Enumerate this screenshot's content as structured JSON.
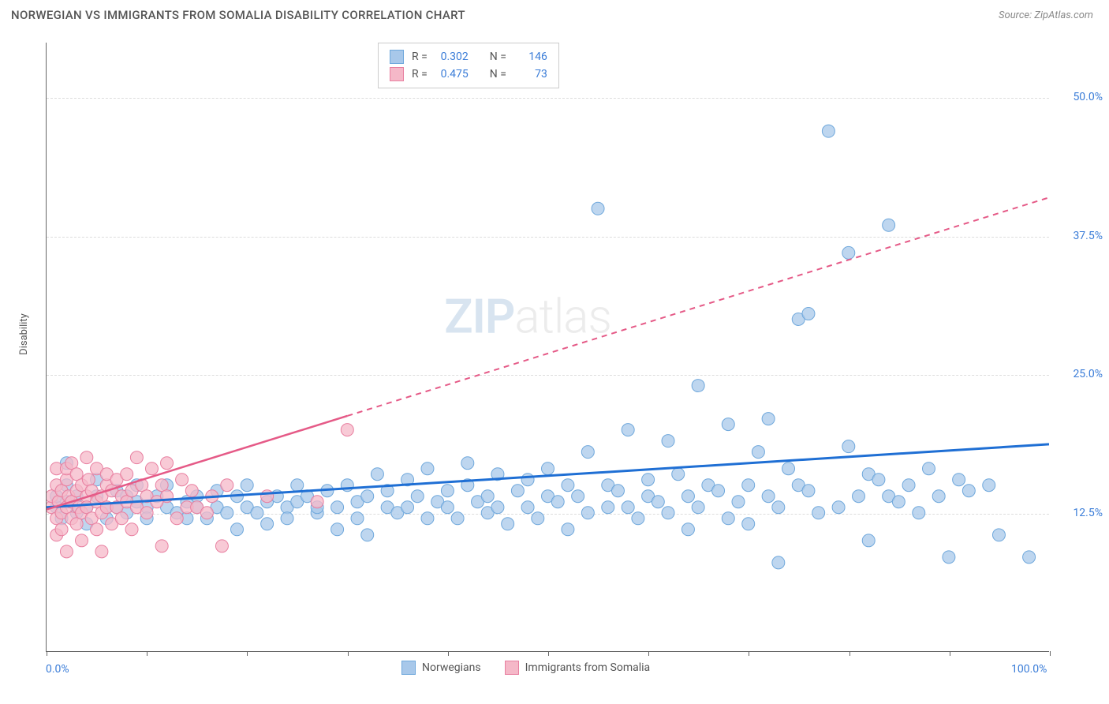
{
  "title": "NORWEGIAN VS IMMIGRANTS FROM SOMALIA DISABILITY CORRELATION CHART",
  "source_label": "Source: ZipAtlas.com",
  "ylabel": "Disability",
  "watermark_a": "ZIP",
  "watermark_b": "atlas",
  "chart": {
    "type": "scatter",
    "xlim": [
      0,
      100
    ],
    "ylim": [
      0,
      55
    ],
    "xtick_positions": [
      0,
      10,
      20,
      30,
      40,
      50,
      60,
      70,
      80,
      90,
      100
    ],
    "xtick_labels_shown": {
      "0": "0.0%",
      "100": "100.0%"
    },
    "ytick_positions": [
      12.5,
      25.0,
      37.5,
      50.0
    ],
    "ytick_labels": [
      "12.5%",
      "25.0%",
      "37.5%",
      "50.0%"
    ],
    "grid_color": "#dddddd",
    "background_color": "#ffffff",
    "series": [
      {
        "name": "Norwegians",
        "marker_color_fill": "#a8c8ea",
        "marker_color_stroke": "#6fa8dc",
        "marker_opacity": 0.75,
        "marker_radius": 8,
        "trend_color": "#1f6fd4",
        "trend_width": 3,
        "trend_dash": "none",
        "trend": {
          "x1": 0,
          "y1": 13.0,
          "x2": 100,
          "y2": 18.7
        },
        "points": [
          [
            1,
            13
          ],
          [
            1,
            14
          ],
          [
            1.5,
            12
          ],
          [
            2,
            13.5
          ],
          [
            2,
            15
          ],
          [
            2,
            17
          ],
          [
            3,
            12.5
          ],
          [
            3,
            14
          ],
          [
            4,
            13
          ],
          [
            4,
            11.5
          ],
          [
            5,
            14
          ],
          [
            5,
            15.5
          ],
          [
            6,
            13
          ],
          [
            6,
            12
          ],
          [
            7,
            14.5
          ],
          [
            7,
            13
          ],
          [
            8,
            12.5
          ],
          [
            8,
            14
          ],
          [
            9,
            13.5
          ],
          [
            9,
            15
          ],
          [
            10,
            13
          ],
          [
            10,
            12
          ],
          [
            11,
            14
          ],
          [
            12,
            13
          ],
          [
            12,
            15
          ],
          [
            13,
            12.5
          ],
          [
            14,
            13.5
          ],
          [
            14,
            12
          ],
          [
            15,
            14
          ],
          [
            15,
            13
          ],
          [
            16,
            12
          ],
          [
            17,
            14.5
          ],
          [
            17,
            13
          ],
          [
            18,
            12.5
          ],
          [
            19,
            14
          ],
          [
            19,
            11
          ],
          [
            20,
            13
          ],
          [
            20,
            15
          ],
          [
            21,
            12.5
          ],
          [
            22,
            13.5
          ],
          [
            22,
            11.5
          ],
          [
            23,
            14
          ],
          [
            24,
            13
          ],
          [
            24,
            12
          ],
          [
            25,
            15
          ],
          [
            25,
            13.5
          ],
          [
            26,
            14
          ],
          [
            27,
            12.5
          ],
          [
            27,
            13
          ],
          [
            28,
            14.5
          ],
          [
            29,
            13
          ],
          [
            29,
            11
          ],
          [
            30,
            15
          ],
          [
            31,
            13.5
          ],
          [
            31,
            12
          ],
          [
            32,
            14
          ],
          [
            32,
            10.5
          ],
          [
            33,
            16
          ],
          [
            34,
            13
          ],
          [
            34,
            14.5
          ],
          [
            35,
            12.5
          ],
          [
            36,
            15.5
          ],
          [
            36,
            13
          ],
          [
            37,
            14
          ],
          [
            38,
            12
          ],
          [
            38,
            16.5
          ],
          [
            39,
            13.5
          ],
          [
            40,
            14.5
          ],
          [
            40,
            13
          ],
          [
            41,
            12
          ],
          [
            42,
            15
          ],
          [
            42,
            17
          ],
          [
            43,
            13.5
          ],
          [
            44,
            14
          ],
          [
            44,
            12.5
          ],
          [
            45,
            16
          ],
          [
            45,
            13
          ],
          [
            46,
            11.5
          ],
          [
            47,
            14.5
          ],
          [
            48,
            13
          ],
          [
            48,
            15.5
          ],
          [
            49,
            12
          ],
          [
            50,
            14
          ],
          [
            50,
            16.5
          ],
          [
            51,
            13.5
          ],
          [
            52,
            15
          ],
          [
            52,
            11
          ],
          [
            53,
            14
          ],
          [
            54,
            12.5
          ],
          [
            54,
            18
          ],
          [
            55,
            40
          ],
          [
            56,
            13
          ],
          [
            56,
            15
          ],
          [
            57,
            14.5
          ],
          [
            58,
            13
          ],
          [
            58,
            20
          ],
          [
            59,
            12
          ],
          [
            60,
            15.5
          ],
          [
            60,
            14
          ],
          [
            61,
            13.5
          ],
          [
            62,
            19
          ],
          [
            62,
            12.5
          ],
          [
            63,
            16
          ],
          [
            64,
            14
          ],
          [
            64,
            11
          ],
          [
            65,
            13
          ],
          [
            65,
            24
          ],
          [
            66,
            15
          ],
          [
            67,
            14.5
          ],
          [
            68,
            12
          ],
          [
            68,
            20.5
          ],
          [
            69,
            13.5
          ],
          [
            70,
            15
          ],
          [
            70,
            11.5
          ],
          [
            71,
            18
          ],
          [
            72,
            14
          ],
          [
            72,
            21
          ],
          [
            73,
            13
          ],
          [
            73,
            8
          ],
          [
            74,
            16.5
          ],
          [
            75,
            15
          ],
          [
            75,
            30
          ],
          [
            76,
            14.5
          ],
          [
            76,
            30.5
          ],
          [
            77,
            12.5
          ],
          [
            78,
            47
          ],
          [
            79,
            13
          ],
          [
            80,
            18.5
          ],
          [
            80,
            36
          ],
          [
            81,
            14
          ],
          [
            82,
            16
          ],
          [
            82,
            10
          ],
          [
            83,
            15.5
          ],
          [
            84,
            14
          ],
          [
            84,
            38.5
          ],
          [
            85,
            13.5
          ],
          [
            86,
            15
          ],
          [
            87,
            12.5
          ],
          [
            88,
            16.5
          ],
          [
            89,
            14
          ],
          [
            90,
            8.5
          ],
          [
            91,
            15.5
          ],
          [
            92,
            14.5
          ],
          [
            94,
            15
          ],
          [
            95,
            10.5
          ],
          [
            98,
            8.5
          ]
        ]
      },
      {
        "name": "Immigrants from Somalia",
        "marker_color_fill": "#f5b8c8",
        "marker_color_stroke": "#e87fa0",
        "marker_opacity": 0.75,
        "marker_radius": 8,
        "trend_color": "#e55a87",
        "trend_width": 2.5,
        "trend_dash": "solid_then_dashed",
        "trend_solid_end_x": 30,
        "trend": {
          "x1": 0,
          "y1": 12.8,
          "x2": 100,
          "y2": 41
        },
        "points": [
          [
            0.5,
            13
          ],
          [
            0.5,
            14
          ],
          [
            1,
            12
          ],
          [
            1,
            15
          ],
          [
            1,
            10.5
          ],
          [
            1,
            16.5
          ],
          [
            1.2,
            13.5
          ],
          [
            1.5,
            12.5
          ],
          [
            1.5,
            14.5
          ],
          [
            1.5,
            11
          ],
          [
            2,
            13
          ],
          [
            2,
            15.5
          ],
          [
            2,
            16.5
          ],
          [
            2,
            9
          ],
          [
            2.2,
            14
          ],
          [
            2.5,
            12
          ],
          [
            2.5,
            13.5
          ],
          [
            2.5,
            17
          ],
          [
            3,
            14.5
          ],
          [
            3,
            11.5
          ],
          [
            3,
            16
          ],
          [
            3.2,
            13
          ],
          [
            3.5,
            15
          ],
          [
            3.5,
            12.5
          ],
          [
            3.5,
            10
          ],
          [
            4,
            14
          ],
          [
            4,
            17.5
          ],
          [
            4,
            13
          ],
          [
            4.2,
            15.5
          ],
          [
            4.5,
            12
          ],
          [
            4.5,
            14.5
          ],
          [
            5,
            13.5
          ],
          [
            5,
            16.5
          ],
          [
            5,
            11
          ],
          [
            5.5,
            14
          ],
          [
            5.5,
            12.5
          ],
          [
            5.5,
            9
          ],
          [
            6,
            15
          ],
          [
            6,
            13
          ],
          [
            6,
            16
          ],
          [
            6.5,
            14.5
          ],
          [
            6.5,
            11.5
          ],
          [
            7,
            13
          ],
          [
            7,
            15.5
          ],
          [
            7.5,
            14
          ],
          [
            7.5,
            12
          ],
          [
            8,
            16
          ],
          [
            8,
            13.5
          ],
          [
            8.5,
            14.5
          ],
          [
            8.5,
            11
          ],
          [
            9,
            13
          ],
          [
            9,
            17.5
          ],
          [
            9.5,
            15
          ],
          [
            10,
            12.5
          ],
          [
            10,
            14
          ],
          [
            10.5,
            16.5
          ],
          [
            11,
            13.5
          ],
          [
            11.5,
            15
          ],
          [
            11.5,
            9.5
          ],
          [
            12,
            14
          ],
          [
            12,
            17
          ],
          [
            13,
            12
          ],
          [
            13.5,
            15.5
          ],
          [
            14,
            13
          ],
          [
            14.5,
            14.5
          ],
          [
            15,
            13
          ],
          [
            16,
            12.5
          ],
          [
            16.5,
            14
          ],
          [
            17.5,
            9.5
          ],
          [
            18,
            15
          ],
          [
            22,
            14
          ],
          [
            27,
            13.5
          ],
          [
            30,
            20
          ]
        ]
      }
    ],
    "legend_top": [
      {
        "swatch_fill": "#a8c8ea",
        "swatch_stroke": "#6fa8dc",
        "r_label": "R =",
        "r_val": "0.302",
        "n_label": "N =",
        "n_val": "146"
      },
      {
        "swatch_fill": "#f5b8c8",
        "swatch_stroke": "#e87fa0",
        "r_label": "R =",
        "r_val": "0.475",
        "n_label": "N =",
        "n_val": "73"
      }
    ],
    "legend_bottom": [
      {
        "swatch_fill": "#a8c8ea",
        "swatch_stroke": "#6fa8dc",
        "label": "Norwegians"
      },
      {
        "swatch_fill": "#f5b8c8",
        "swatch_stroke": "#e87fa0",
        "label": "Immigrants from Somalia"
      }
    ]
  }
}
